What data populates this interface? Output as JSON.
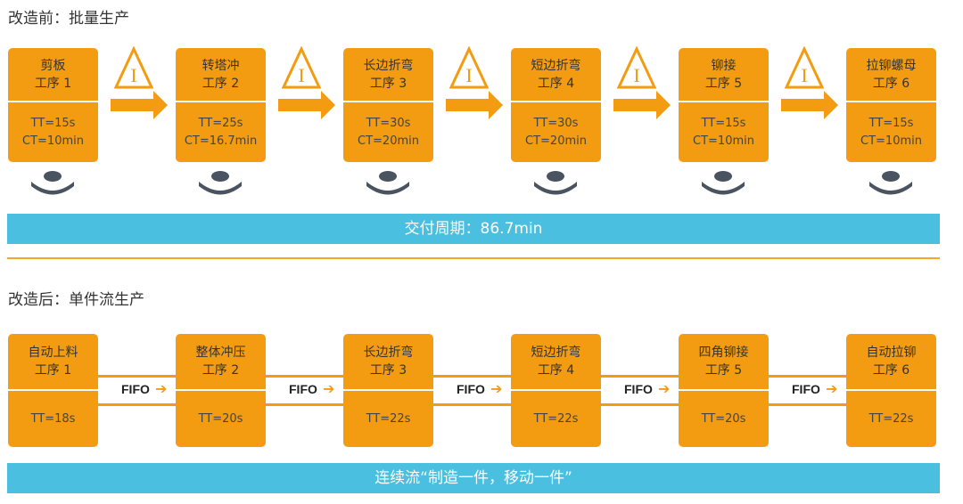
{
  "before": {
    "title": "改造前：批量生产",
    "steps": [
      {
        "name": "剪板",
        "step": "工序 1",
        "tt": "TT=15s",
        "ct": "CT=10min"
      },
      {
        "name": "转塔冲",
        "step": "工序 2",
        "tt": "TT=25s",
        "ct": "CT=16.7min"
      },
      {
        "name": "长边折弯",
        "step": "工序 3",
        "tt": "TT=30s",
        "ct": "CT=20min"
      },
      {
        "name": "短边折弯",
        "step": "工序 4",
        "tt": "TT=30s",
        "ct": "CT=20min"
      },
      {
        "name": "铆接",
        "step": "工序 5",
        "tt": "TT=15s",
        "ct": "CT=10min"
      },
      {
        "name": "拉铆螺母",
        "step": "工序 6",
        "tt": "TT=15s",
        "ct": "CT=10min"
      }
    ],
    "inventory_symbol": "I",
    "bar": "交付周期：86.7min"
  },
  "after": {
    "title": "改造后：单件流生产",
    "steps": [
      {
        "name": "自动上料",
        "step": "工序 1",
        "tt": "TT=18s"
      },
      {
        "name": "整体冲压",
        "step": "工序 2",
        "tt": "TT=20s"
      },
      {
        "name": "长边折弯",
        "step": "工序 3",
        "tt": "TT=22s"
      },
      {
        "name": "短边折弯",
        "step": "工序 4",
        "tt": "TT=22s"
      },
      {
        "name": "四角铆接",
        "step": "工序 5",
        "tt": "TT=20s"
      },
      {
        "name": "自动拉铆",
        "step": "工序 6",
        "tt": "TT=22s"
      }
    ],
    "fifo": "FIFO",
    "bar": "连续流“制造一件，移动一件”"
  },
  "colors": {
    "orange": "#f39c12",
    "cyan": "#4bbfe0",
    "operator": "#4a5360"
  }
}
